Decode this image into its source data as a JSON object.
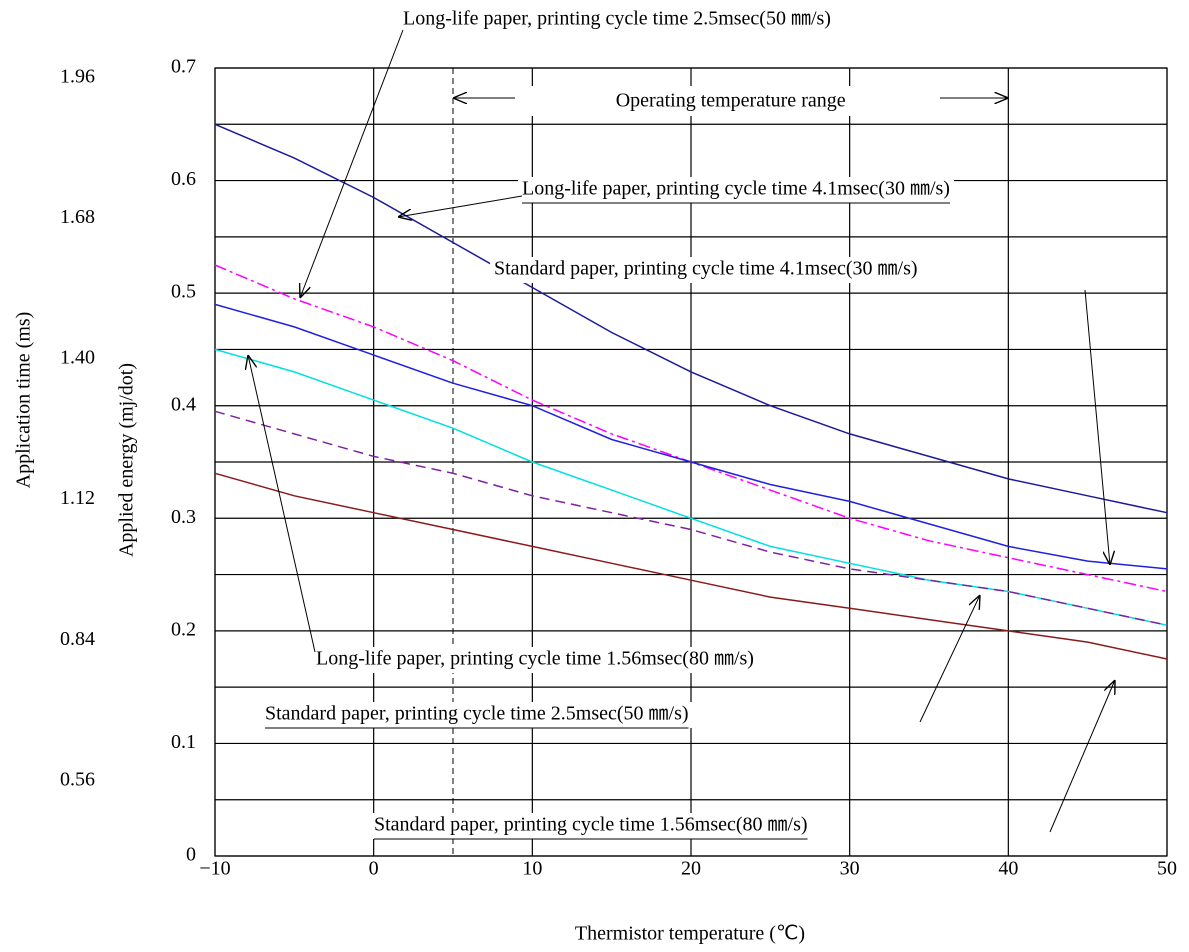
{
  "chart_data": {
    "type": "line",
    "x_label": "Thermistor temperature (℃)",
    "y_label": "Applied energy (mj/dot)",
    "y2_label": "Application time (ms)",
    "x": [
      -10,
      -5,
      0,
      5,
      10,
      15,
      20,
      25,
      30,
      35,
      40,
      45,
      50
    ],
    "xlim": [
      -10,
      50
    ],
    "xticks": [
      {
        "value": -10,
        "label": "−10"
      },
      0,
      10,
      20,
      30,
      40,
      50
    ],
    "ylim": [
      0,
      0.7
    ],
    "yticks": [
      0,
      0.1,
      0.2,
      0.3,
      0.4,
      0.5,
      0.6,
      0.7
    ],
    "yminor": [
      0.05,
      0.15,
      0.25,
      0.35,
      0.45,
      0.55,
      0.65
    ],
    "y2lim": [
      0.41,
      1.98
    ],
    "y2ticks": [
      0.56,
      0.84,
      {
        "value": 1.12,
        "label": "1.12"
      },
      {
        "value": 1.4,
        "label": "1.40"
      },
      1.68,
      1.96
    ],
    "grid": true,
    "operating_range": {
      "label": "Operating temperature range",
      "range": [
        5,
        40
      ]
    },
    "series": [
      {
        "name": "Long-life paper, printing cycle time 2.5msec(50 ㎜/s)",
        "color": "#ff00ff",
        "dash": "dashdot",
        "values": [
          0.525,
          0.495,
          0.47,
          0.44,
          0.405,
          0.375,
          0.35,
          0.325,
          0.3,
          0.28,
          0.265,
          0.25,
          0.235
        ]
      },
      {
        "name": "Long-life paper, printing cycle time 4.1msec(30 ㎜/s)",
        "color": "#1a1a9a",
        "dash": "solid",
        "values": [
          0.65,
          0.62,
          0.585,
          0.545,
          0.505,
          0.465,
          0.43,
          0.4,
          0.375,
          0.355,
          0.335,
          0.32,
          0.305
        ]
      },
      {
        "name": "Standard paper, printing cycle time 4.1msec(30 ㎜/s)",
        "color": "#2020e0",
        "dash": "solid",
        "values": [
          0.49,
          0.47,
          0.445,
          0.42,
          0.4,
          0.37,
          0.35,
          0.33,
          0.315,
          0.295,
          0.275,
          0.262,
          0.255
        ]
      },
      {
        "name": "Long-life paper, printing cycle time 1.56msec(80 ㎜/s)",
        "color": "#00e0e0",
        "dash": "solid",
        "values": [
          0.45,
          0.43,
          0.405,
          0.38,
          0.35,
          0.325,
          0.3,
          0.275,
          0.26,
          0.245,
          0.235,
          0.22,
          0.205
        ]
      },
      {
        "name": "Standard paper, printing cycle time 2.5msec(50 ㎜/s)",
        "color": "#8020a0",
        "dash": "dashed",
        "values": [
          0.395,
          0.375,
          0.355,
          0.34,
          0.32,
          0.305,
          0.29,
          0.27,
          0.255,
          0.245,
          0.235,
          0.22,
          0.205
        ]
      },
      {
        "name": "Standard paper, printing cycle time 1.56msec(80 ㎜/s)",
        "color": "#8b1a1a",
        "dash": "solid",
        "values": [
          0.34,
          0.32,
          0.305,
          0.29,
          0.275,
          0.26,
          0.245,
          0.23,
          0.22,
          0.21,
          0.2,
          0.19,
          0.175
        ]
      }
    ]
  }
}
